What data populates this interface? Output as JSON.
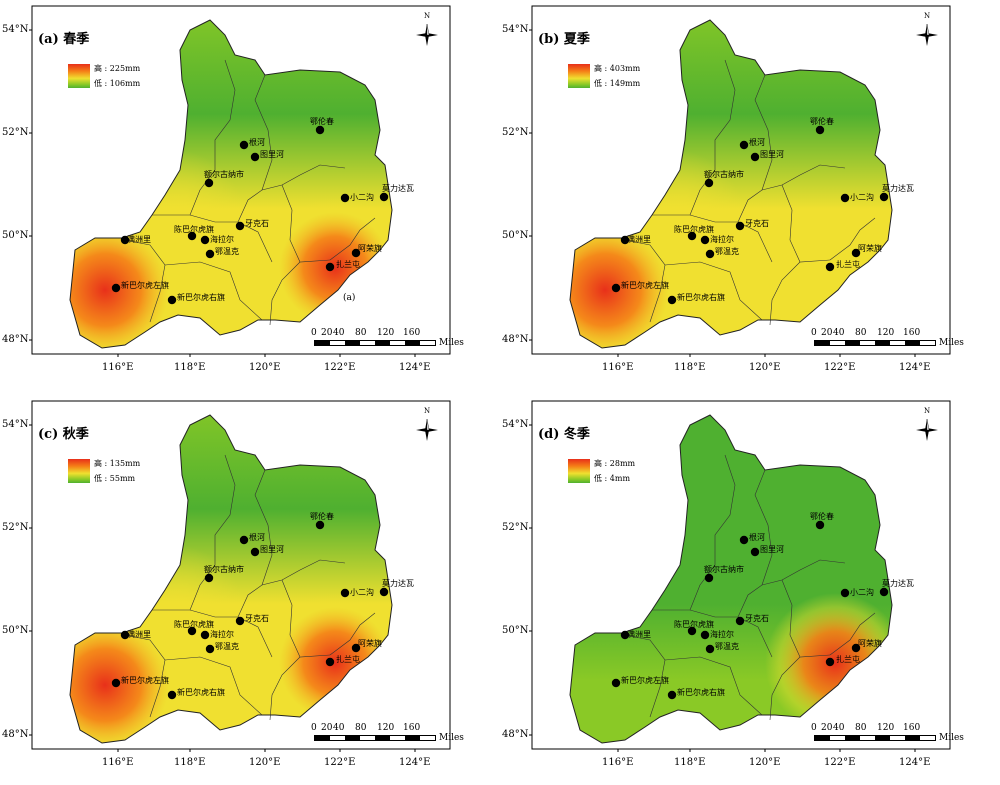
{
  "gradient_colors": [
    "#4fb030",
    "#8ac926",
    "#f0e030",
    "#f57f17",
    "#e8301a"
  ],
  "legend_labels": {
    "high": "高",
    "low": "低"
  },
  "north_label": "N",
  "scale": {
    "ticks": [
      "0",
      "20",
      "40",
      "80",
      "120",
      "160"
    ],
    "unit": "Miles"
  },
  "lat_labels": [
    "54°N",
    "52°N",
    "50°N",
    "48°N"
  ],
  "lon_labels": [
    "116°E",
    "118°E",
    "120°E",
    "122°E",
    "124°E"
  ],
  "stations": [
    "满洲里",
    "新巴尔虎左旗",
    "新巴尔虎右旗",
    "陈巴尔虎旗",
    "海拉尔",
    "鄂温克",
    "牙克石",
    "根河",
    "图里河",
    "额尔古纳市",
    "鄂伦春",
    "小二沟",
    "莫力达瓦",
    "阿荣旗",
    "扎兰屯"
  ],
  "panels": [
    {
      "title": "(a) 春季",
      "legend_high": "高 : 225mm",
      "legend_low": "低 : 106mm",
      "extra_label": "(a)",
      "hot": [
        "SW",
        "SE"
      ]
    },
    {
      "title": "(b) 夏季",
      "legend_high": "高 : 403mm",
      "legend_low": "低 : 149mm",
      "extra_label": "",
      "hot": [
        "SW"
      ]
    },
    {
      "title": "(c) 秋季",
      "legend_high": "高 : 135mm",
      "legend_low": "低 : 55mm",
      "extra_label": "",
      "hot": [
        "SW",
        "SE"
      ]
    },
    {
      "title": "(d) 冬季",
      "legend_high": "高 : 28mm",
      "legend_low": "低 : 4mm",
      "extra_label": "",
      "hot": [
        "SE"
      ]
    }
  ]
}
